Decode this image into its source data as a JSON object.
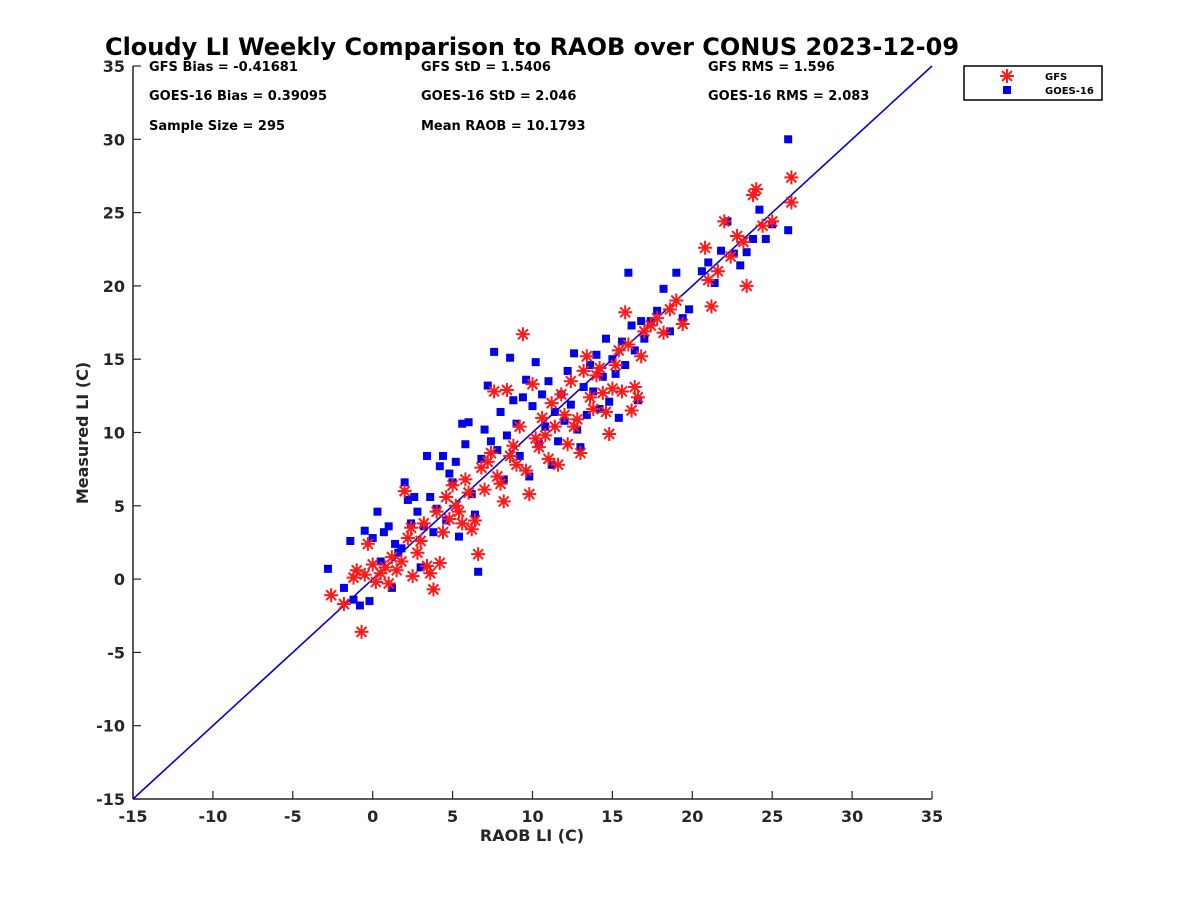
{
  "chart_data": {
    "type": "scatter",
    "title": "Cloudy LI Weekly Comparison to RAOB over CONUS 2023-12-09",
    "xlabel": "RAOB LI (C)",
    "ylabel": "Measured LI (C)",
    "xlim": [
      -15,
      35
    ],
    "ylim": [
      -15,
      35
    ],
    "xticks": [
      -15,
      -10,
      -5,
      0,
      5,
      10,
      15,
      20,
      25,
      30,
      35
    ],
    "yticks": [
      -15,
      -10,
      -5,
      0,
      5,
      10,
      15,
      20,
      25,
      30,
      35
    ],
    "grid": false,
    "legend_position": "outside-top-right",
    "reference_line": {
      "x": [
        -15,
        35
      ],
      "y": [
        -15,
        35
      ],
      "color": "#0000dd"
    },
    "stats": [
      "GFS Bias = -0.41681",
      "GFS StD = 1.5406",
      "GFS RMS = 1.596",
      "GOES-16 Bias = 0.39095",
      "GOES-16 StD = 2.046",
      "GOES-16 RMS = 2.083",
      "Sample Size = 295",
      "Mean RAOB = 10.1793"
    ],
    "series": [
      {
        "name": "GFS",
        "marker": "asterisk",
        "color": "#ff1a1a",
        "points": [
          [
            -2.6,
            -1.1
          ],
          [
            -1.8,
            -1.7
          ],
          [
            -1.2,
            0.1
          ],
          [
            -1,
            0.6
          ],
          [
            -0.7,
            -3.6
          ],
          [
            -0.5,
            0.3
          ],
          [
            -0.3,
            2.4
          ],
          [
            0,
            1
          ],
          [
            0.2,
            -0.2
          ],
          [
            0.5,
            0.4
          ],
          [
            0.8,
            0.8
          ],
          [
            1,
            -0.3
          ],
          [
            1.2,
            1.5
          ],
          [
            1.5,
            0.6
          ],
          [
            1.8,
            1.2
          ],
          [
            2,
            6
          ],
          [
            2.2,
            2.8
          ],
          [
            2.4,
            3.5
          ],
          [
            2.5,
            0.2
          ],
          [
            2.8,
            1.8
          ],
          [
            3,
            2.6
          ],
          [
            3.2,
            3.8
          ],
          [
            3.4,
            0.9
          ],
          [
            3.6,
            0.4
          ],
          [
            3.8,
            -0.7
          ],
          [
            4,
            4.6
          ],
          [
            4.2,
            1.1
          ],
          [
            4.4,
            3.2
          ],
          [
            4.6,
            5.6
          ],
          [
            4.8,
            4.1
          ],
          [
            5,
            6.4
          ],
          [
            5.2,
            5
          ],
          [
            5.4,
            4.6
          ],
          [
            5.6,
            3.8
          ],
          [
            5.8,
            6.8
          ],
          [
            6,
            5.9
          ],
          [
            6.2,
            3.4
          ],
          [
            6.4,
            4
          ],
          [
            6.6,
            1.7
          ],
          [
            6.8,
            7.6
          ],
          [
            7,
            6.1
          ],
          [
            7.2,
            8
          ],
          [
            7.4,
            8.6
          ],
          [
            7.6,
            12.8
          ],
          [
            7.8,
            7
          ],
          [
            8,
            6.5
          ],
          [
            8.2,
            5.3
          ],
          [
            8.4,
            12.9
          ],
          [
            8.6,
            8.4
          ],
          [
            8.8,
            9.1
          ],
          [
            9,
            7.8
          ],
          [
            9.2,
            10.4
          ],
          [
            9.4,
            16.7
          ],
          [
            9.6,
            7.4
          ],
          [
            9.8,
            5.8
          ],
          [
            10,
            13.3
          ],
          [
            10.2,
            9.6
          ],
          [
            10.4,
            9
          ],
          [
            10.6,
            11
          ],
          [
            10.8,
            9.8
          ],
          [
            11,
            8.2
          ],
          [
            11.2,
            12
          ],
          [
            11.4,
            10.4
          ],
          [
            11.6,
            7.8
          ],
          [
            11.8,
            12.6
          ],
          [
            12,
            11.2
          ],
          [
            12.2,
            9.2
          ],
          [
            12.4,
            13.5
          ],
          [
            12.6,
            10.4
          ],
          [
            12.8,
            10.9
          ],
          [
            13,
            8.6
          ],
          [
            13.2,
            14.2
          ],
          [
            13.4,
            15.2
          ],
          [
            13.6,
            12.4
          ],
          [
            13.8,
            11.6
          ],
          [
            14,
            13.9
          ],
          [
            14.2,
            14.4
          ],
          [
            14.4,
            12.7
          ],
          [
            14.6,
            11.4
          ],
          [
            14.8,
            9.9
          ],
          [
            15,
            13
          ],
          [
            15.2,
            14.6
          ],
          [
            15.4,
            15.6
          ],
          [
            15.6,
            12.8
          ],
          [
            15.8,
            18.2
          ],
          [
            16,
            16
          ],
          [
            16.2,
            11.5
          ],
          [
            16.4,
            13.1
          ],
          [
            16.6,
            12.4
          ],
          [
            16.8,
            15.2
          ],
          [
            17,
            16.9
          ],
          [
            17.4,
            17.3
          ],
          [
            17.8,
            17.8
          ],
          [
            18.2,
            16.8
          ],
          [
            18.6,
            18.4
          ],
          [
            19,
            19
          ],
          [
            19.4,
            17.4
          ],
          [
            20.8,
            22.6
          ],
          [
            21,
            20.4
          ],
          [
            21.2,
            18.6
          ],
          [
            21.6,
            21
          ],
          [
            22,
            24.4
          ],
          [
            22.4,
            22
          ],
          [
            22.8,
            23.4
          ],
          [
            23.2,
            23
          ],
          [
            23.4,
            20
          ],
          [
            23.8,
            26.2
          ],
          [
            24,
            26.6
          ],
          [
            24.4,
            24.1
          ],
          [
            25,
            24.4
          ],
          [
            26.2,
            27.4
          ],
          [
            26.2,
            25.7
          ]
        ]
      },
      {
        "name": "GOES-16",
        "marker": "square",
        "color": "#0000ee",
        "points": [
          [
            -2.8,
            0.7
          ],
          [
            -1.8,
            -0.6
          ],
          [
            -1.4,
            2.6
          ],
          [
            -1.2,
            -1.4
          ],
          [
            -0.8,
            -1.8
          ],
          [
            -0.5,
            3.3
          ],
          [
            -0.2,
            -1.5
          ],
          [
            0,
            2.8
          ],
          [
            0.3,
            4.6
          ],
          [
            0.5,
            1.2
          ],
          [
            0.7,
            3.2
          ],
          [
            1,
            3.6
          ],
          [
            1.2,
            -0.6
          ],
          [
            1.4,
            2.4
          ],
          [
            1.6,
            1.8
          ],
          [
            1.8,
            2.1
          ],
          [
            2,
            6.6
          ],
          [
            2.2,
            5.4
          ],
          [
            2.4,
            3.8
          ],
          [
            2.6,
            5.6
          ],
          [
            2.8,
            4.6
          ],
          [
            3,
            0.8
          ],
          [
            3.2,
            3.6
          ],
          [
            3.4,
            8.4
          ],
          [
            3.6,
            5.6
          ],
          [
            3.8,
            3.2
          ],
          [
            4,
            4.8
          ],
          [
            4.2,
            7.7
          ],
          [
            4.4,
            8.4
          ],
          [
            4.6,
            4
          ],
          [
            4.8,
            7.2
          ],
          [
            5,
            6.6
          ],
          [
            5.2,
            8
          ],
          [
            5.4,
            2.9
          ],
          [
            5.6,
            10.6
          ],
          [
            5.8,
            9.2
          ],
          [
            6,
            10.7
          ],
          [
            6.2,
            5.8
          ],
          [
            6.4,
            4.4
          ],
          [
            6.6,
            0.5
          ],
          [
            6.8,
            8.2
          ],
          [
            7,
            10.2
          ],
          [
            7.2,
            13.2
          ],
          [
            7.4,
            9.4
          ],
          [
            7.6,
            15.5
          ],
          [
            7.8,
            8.8
          ],
          [
            8,
            11.4
          ],
          [
            8.2,
            6.8
          ],
          [
            8.4,
            9.8
          ],
          [
            8.6,
            15.1
          ],
          [
            8.8,
            12.2
          ],
          [
            9,
            10.6
          ],
          [
            9.2,
            8.4
          ],
          [
            9.4,
            12.4
          ],
          [
            9.6,
            13.6
          ],
          [
            9.8,
            7
          ],
          [
            10,
            11.8
          ],
          [
            10.2,
            14.8
          ],
          [
            10.4,
            9.2
          ],
          [
            10.6,
            12.6
          ],
          [
            10.8,
            10.4
          ],
          [
            11,
            13.5
          ],
          [
            11.2,
            7.8
          ],
          [
            11.4,
            11.4
          ],
          [
            11.6,
            9.4
          ],
          [
            11.8,
            12.6
          ],
          [
            12,
            10.8
          ],
          [
            12.2,
            14.2
          ],
          [
            12.4,
            11.9
          ],
          [
            12.6,
            15.4
          ],
          [
            12.8,
            10.2
          ],
          [
            13,
            9
          ],
          [
            13.2,
            13.1
          ],
          [
            13.4,
            11.2
          ],
          [
            13.6,
            14.6
          ],
          [
            13.8,
            12.8
          ],
          [
            14,
            15.3
          ],
          [
            14.2,
            11.6
          ],
          [
            14.4,
            13.8
          ],
          [
            14.6,
            16.4
          ],
          [
            14.8,
            12.1
          ],
          [
            15,
            15
          ],
          [
            15.2,
            14
          ],
          [
            15.4,
            11
          ],
          [
            15.6,
            16.2
          ],
          [
            15.8,
            14.6
          ],
          [
            16,
            20.9
          ],
          [
            16.2,
            17.3
          ],
          [
            16.4,
            15.6
          ],
          [
            16.6,
            12.2
          ],
          [
            16.8,
            17.6
          ],
          [
            17,
            16.4
          ],
          [
            17.4,
            17.6
          ],
          [
            17.8,
            18.3
          ],
          [
            18.2,
            19.8
          ],
          [
            18.6,
            16.9
          ],
          [
            19,
            20.9
          ],
          [
            19.4,
            17.8
          ],
          [
            19.8,
            18.4
          ],
          [
            20.6,
            21
          ],
          [
            21,
            21.6
          ],
          [
            21.4,
            20.2
          ],
          [
            21.8,
            22.4
          ],
          [
            22.2,
            24.4
          ],
          [
            22.6,
            22.2
          ],
          [
            23,
            21.4
          ],
          [
            23.4,
            22.3
          ],
          [
            23.8,
            23.2
          ],
          [
            24.2,
            25.2
          ],
          [
            24.6,
            23.2
          ],
          [
            25,
            24.2
          ],
          [
            26,
            30
          ],
          [
            26,
            23.8
          ]
        ]
      }
    ]
  }
}
